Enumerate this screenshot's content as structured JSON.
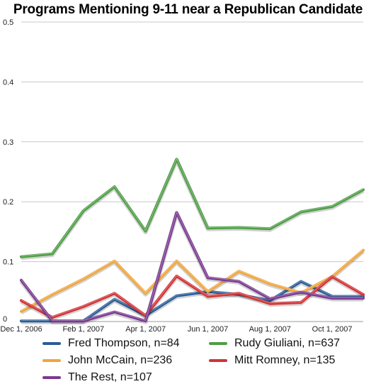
{
  "chart_data": {
    "type": "line",
    "title": "Programs Mentioning 9-11 near a Republican Candidate",
    "x": [
      "Dec 1, 2006",
      "Jan 1, 2007",
      "Feb 1, 2007",
      "Mar 1, 2007",
      "Apr 1, 2007",
      "May 1, 2007",
      "Jun 1, 2007",
      "Jul 1, 2007",
      "Aug 1, 2007",
      "Sep 1, 2007",
      "Oct 1, 2007",
      "Nov 1, 2007"
    ],
    "x_tick_labels": [
      "Dec 1, 2006",
      "Feb 1, 2007",
      "Apr 1, 2007",
      "Jun 1, 2007",
      "Aug 1, 2007",
      "Oct 1, 2007"
    ],
    "ylim": [
      0,
      0.5
    ],
    "y_ticks": [
      "0",
      "0.1",
      "0.2",
      "0.3",
      "0.4",
      "0.5"
    ],
    "grid": true,
    "legend_position": "bottom",
    "series": [
      {
        "name": "Fred Thompson, n=84",
        "color": "#2a5d97",
        "values": [
          0.001,
          0.001,
          0.001,
          0.037,
          0.01,
          0.043,
          0.05,
          0.045,
          0.035,
          0.067,
          0.042,
          0.042
        ]
      },
      {
        "name": "Rudy Giuliani, n=637",
        "color": "#4f9e45",
        "values": [
          0.108,
          0.113,
          0.185,
          0.225,
          0.151,
          0.271,
          0.156,
          0.157,
          0.155,
          0.183,
          0.192,
          0.22
        ]
      },
      {
        "name": "John McCain, n=236",
        "color": "#f0a53c",
        "values": [
          0.017,
          0.045,
          0.071,
          0.101,
          0.047,
          0.101,
          0.05,
          0.084,
          0.063,
          0.048,
          0.075,
          0.119
        ]
      },
      {
        "name": "Mitt Romney, n=135",
        "color": "#d23235",
        "values": [
          0.035,
          0.007,
          0.025,
          0.047,
          0.01,
          0.076,
          0.042,
          0.047,
          0.03,
          0.032,
          0.075,
          0.045
        ]
      },
      {
        "name": "The Rest, n=107",
        "color": "#7b3a91",
        "values": [
          0.069,
          0.001,
          0.001,
          0.016,
          0.001,
          0.182,
          0.073,
          0.067,
          0.038,
          0.049,
          0.039,
          0.039
        ]
      }
    ]
  }
}
